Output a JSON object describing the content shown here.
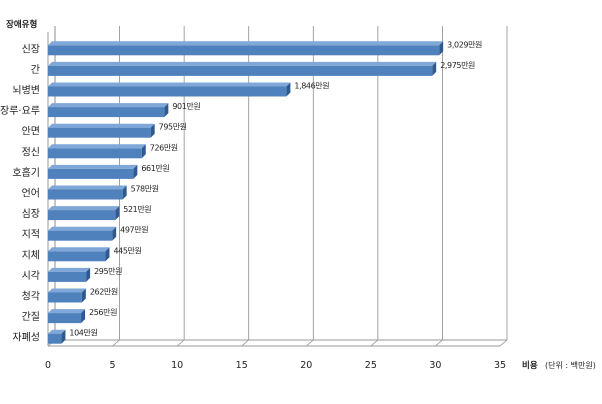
{
  "chart_data": {
    "type": "bar",
    "orientation": "horizontal",
    "y_title": "장애유형",
    "x_title": "비용",
    "x_unit": "(단위 : 백만원)",
    "categories": [
      "신장",
      "간",
      "뇌병변",
      "장루·요루",
      "안면",
      "정신",
      "호흡기",
      "언어",
      "심장",
      "지적",
      "지체",
      "시각",
      "청각",
      "간질",
      "자폐성"
    ],
    "values": [
      30.29,
      29.75,
      18.46,
      9.01,
      7.95,
      7.26,
      6.61,
      5.78,
      5.21,
      4.97,
      4.45,
      2.95,
      2.62,
      2.56,
      1.04
    ],
    "labels": [
      "3,029만원",
      "2,975만원",
      "1,846만원",
      "901만원",
      "795만원",
      "726만원",
      "661만원",
      "578만원",
      "521만원",
      "497만원",
      "445만원",
      "295만원",
      "262만원",
      "256만원",
      "104만원"
    ],
    "xlim": [
      0,
      35
    ],
    "xticks": [
      "0",
      "5",
      "10",
      "15",
      "20",
      "25",
      "30",
      "35"
    ],
    "grid": "vertical",
    "colors": {
      "bar_face": "#4F81BD",
      "bar_top": "#7FA7D8",
      "bar_side": "#2F5A8F",
      "grid": "#8c8c8c",
      "wall": "#9a9a9a"
    }
  }
}
